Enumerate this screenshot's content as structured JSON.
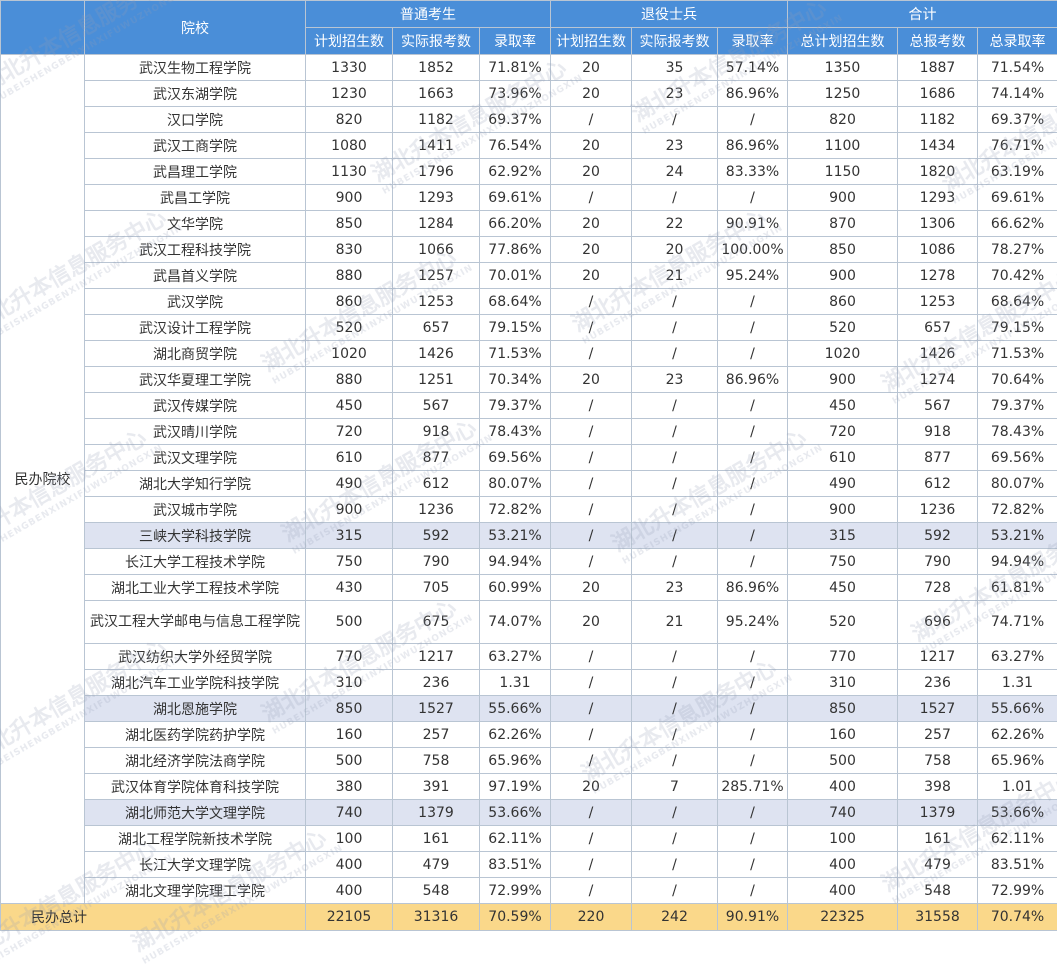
{
  "header": {
    "school": "院校",
    "groups": [
      "普通考生",
      "退役士兵",
      "合计"
    ],
    "cols": [
      "计划招生数",
      "实际报考数",
      "录取率",
      "计划招生数",
      "实际报考数",
      "录取率",
      "总计划招生数",
      "总报考数",
      "总录取率"
    ]
  },
  "category": "民办院校",
  "rows": [
    {
      "name": "武汉生物工程学院",
      "v": [
        "1330",
        "1852",
        "71.81%",
        "20",
        "35",
        "57.14%",
        "1350",
        "1887",
        "71.54%"
      ]
    },
    {
      "name": "武汉东湖学院",
      "v": [
        "1230",
        "1663",
        "73.96%",
        "20",
        "23",
        "86.96%",
        "1250",
        "1686",
        "74.14%"
      ]
    },
    {
      "name": "汉口学院",
      "v": [
        "820",
        "1182",
        "69.37%",
        "/",
        "/",
        "/",
        "820",
        "1182",
        "69.37%"
      ]
    },
    {
      "name": "武汉工商学院",
      "v": [
        "1080",
        "1411",
        "76.54%",
        "20",
        "23",
        "86.96%",
        "1100",
        "1434",
        "76.71%"
      ]
    },
    {
      "name": "武昌理工学院",
      "v": [
        "1130",
        "1796",
        "62.92%",
        "20",
        "24",
        "83.33%",
        "1150",
        "1820",
        "63.19%"
      ]
    },
    {
      "name": "武昌工学院",
      "v": [
        "900",
        "1293",
        "69.61%",
        "/",
        "/",
        "/",
        "900",
        "1293",
        "69.61%"
      ]
    },
    {
      "name": "文华学院",
      "v": [
        "850",
        "1284",
        "66.20%",
        "20",
        "22",
        "90.91%",
        "870",
        "1306",
        "66.62%"
      ]
    },
    {
      "name": "武汉工程科技学院",
      "v": [
        "830",
        "1066",
        "77.86%",
        "20",
        "20",
        "100.00%",
        "850",
        "1086",
        "78.27%"
      ]
    },
    {
      "name": "武昌首义学院",
      "v": [
        "880",
        "1257",
        "70.01%",
        "20",
        "21",
        "95.24%",
        "900",
        "1278",
        "70.42%"
      ]
    },
    {
      "name": "武汉学院",
      "v": [
        "860",
        "1253",
        "68.64%",
        "/",
        "/",
        "/",
        "860",
        "1253",
        "68.64%"
      ]
    },
    {
      "name": "武汉设计工程学院",
      "v": [
        "520",
        "657",
        "79.15%",
        "/",
        "/",
        "/",
        "520",
        "657",
        "79.15%"
      ]
    },
    {
      "name": "湖北商贸学院",
      "v": [
        "1020",
        "1426",
        "71.53%",
        "/",
        "/",
        "/",
        "1020",
        "1426",
        "71.53%"
      ]
    },
    {
      "name": "武汉华夏理工学院",
      "v": [
        "880",
        "1251",
        "70.34%",
        "20",
        "23",
        "86.96%",
        "900",
        "1274",
        "70.64%"
      ]
    },
    {
      "name": "武汉传媒学院",
      "v": [
        "450",
        "567",
        "79.37%",
        "/",
        "/",
        "/",
        "450",
        "567",
        "79.37%"
      ]
    },
    {
      "name": "武汉晴川学院",
      "v": [
        "720",
        "918",
        "78.43%",
        "/",
        "/",
        "/",
        "720",
        "918",
        "78.43%"
      ]
    },
    {
      "name": "武汉文理学院",
      "v": [
        "610",
        "877",
        "69.56%",
        "/",
        "/",
        "/",
        "610",
        "877",
        "69.56%"
      ]
    },
    {
      "name": "湖北大学知行学院",
      "v": [
        "490",
        "612",
        "80.07%",
        "/",
        "/",
        "/",
        "490",
        "612",
        "80.07%"
      ]
    },
    {
      "name": "武汉城市学院",
      "v": [
        "900",
        "1236",
        "72.82%",
        "/",
        "/",
        "/",
        "900",
        "1236",
        "72.82%"
      ]
    },
    {
      "name": "三峡大学科技学院",
      "v": [
        "315",
        "592",
        "53.21%",
        "/",
        "/",
        "/",
        "315",
        "592",
        "53.21%"
      ]
    },
    {
      "name": "长江大学工程技术学院",
      "v": [
        "750",
        "790",
        "94.94%",
        "/",
        "/",
        "/",
        "750",
        "790",
        "94.94%"
      ]
    },
    {
      "name": "湖北工业大学工程技术学院",
      "v": [
        "430",
        "705",
        "60.99%",
        "20",
        "23",
        "86.96%",
        "450",
        "728",
        "61.81%"
      ]
    },
    {
      "name": "武汉工程大学邮电与信息工程学院",
      "v": [
        "500",
        "675",
        "74.07%",
        "20",
        "21",
        "95.24%",
        "520",
        "696",
        "74.71%"
      ]
    },
    {
      "name": "武汉纺织大学外经贸学院",
      "v": [
        "770",
        "1217",
        "63.27%",
        "/",
        "/",
        "/",
        "770",
        "1217",
        "63.27%"
      ]
    },
    {
      "name": "湖北汽车工业学院科技学院",
      "v": [
        "310",
        "236",
        "1.31",
        "/",
        "/",
        "/",
        "310",
        "236",
        "1.31"
      ]
    },
    {
      "name": "湖北恩施学院",
      "v": [
        "850",
        "1527",
        "55.66%",
        "/",
        "/",
        "/",
        "850",
        "1527",
        "55.66%"
      ]
    },
    {
      "name": "湖北医药学院药护学院",
      "v": [
        "160",
        "257",
        "62.26%",
        "/",
        "/",
        "/",
        "160",
        "257",
        "62.26%"
      ]
    },
    {
      "name": "湖北经济学院法商学院",
      "v": [
        "500",
        "758",
        "65.96%",
        "/",
        "/",
        "/",
        "500",
        "758",
        "65.96%"
      ]
    },
    {
      "name": "武汉体育学院体育科技学院",
      "v": [
        "380",
        "391",
        "97.19%",
        "20",
        "7",
        "285.71%",
        "400",
        "398",
        "1.01"
      ]
    },
    {
      "name": "湖北师范大学文理学院",
      "v": [
        "740",
        "1379",
        "53.66%",
        "/",
        "/",
        "/",
        "740",
        "1379",
        "53.66%"
      ]
    },
    {
      "name": "湖北工程学院新技术学院",
      "v": [
        "100",
        "161",
        "62.11%",
        "/",
        "/",
        "/",
        "100",
        "161",
        "62.11%"
      ]
    },
    {
      "name": "长江大学文理学院",
      "v": [
        "400",
        "479",
        "83.51%",
        "/",
        "/",
        "/",
        "400",
        "479",
        "83.51%"
      ]
    },
    {
      "name": "湖北文理学院理工学院",
      "v": [
        "400",
        "548",
        "72.99%",
        "/",
        "/",
        "/",
        "400",
        "548",
        "72.99%"
      ]
    }
  ],
  "total": {
    "label": "民办总计",
    "v": [
      "22105",
      "31316",
      "70.59%",
      "220",
      "242",
      "90.91%",
      "22325",
      "31558",
      "70.74%"
    ]
  },
  "watermark": {
    "cn": "湖北升本信息服务中心",
    "en": "HUBEISHENGBENXINXIFUWUZHONGXIN"
  }
}
